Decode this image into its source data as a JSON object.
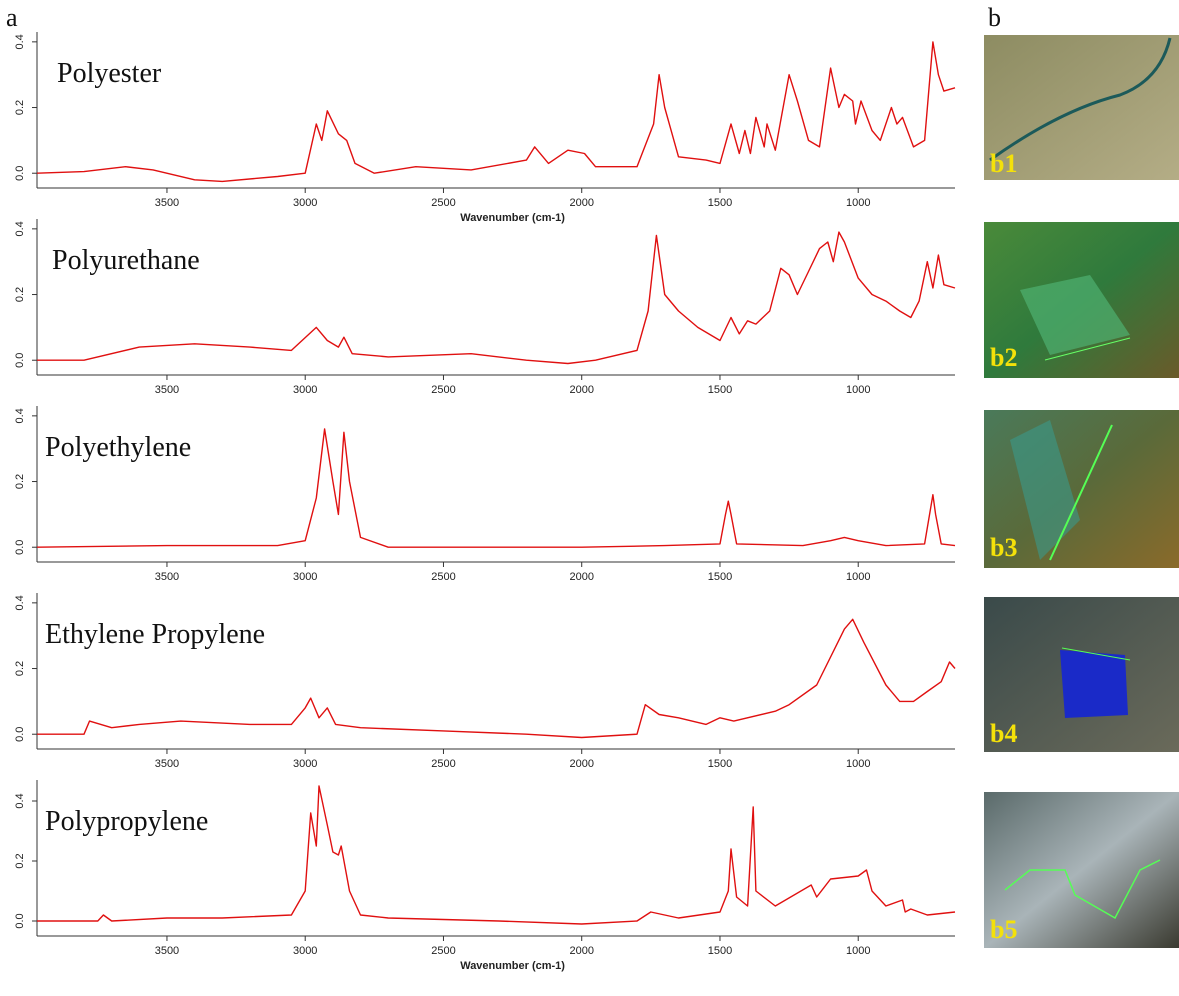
{
  "panel_labels": [
    "a",
    "b"
  ],
  "photos": [
    {
      "label": "b1"
    },
    {
      "label": "b2"
    },
    {
      "label": "b3"
    },
    {
      "label": "b4"
    },
    {
      "label": "b5"
    }
  ],
  "chart_data": [
    {
      "type": "line",
      "title": "Polyester",
      "xlabel": "Wavenumber (cm-1)",
      "color": "#e01010",
      "xlim": [
        3970,
        650
      ],
      "ylim": [
        -0.045,
        0.43
      ],
      "xticks": [
        3500,
        3000,
        2500,
        2000,
        1500,
        1000
      ],
      "yticks": [
        {
          "value": 0,
          "label": "0.0"
        },
        {
          "value": 0.2,
          "label": "0.2"
        },
        {
          "value": 0.4,
          "label": "0.4"
        }
      ],
      "x": [
        3970,
        3800,
        3650,
        3550,
        3400,
        3300,
        3100,
        3000,
        2960,
        2940,
        2920,
        2880,
        2850,
        2820,
        2750,
        2600,
        2400,
        2200,
        2170,
        2120,
        2050,
        1990,
        1950,
        1800,
        1740,
        1720,
        1700,
        1650,
        1550,
        1500,
        1460,
        1430,
        1410,
        1390,
        1370,
        1340,
        1330,
        1300,
        1250,
        1220,
        1180,
        1140,
        1100,
        1070,
        1050,
        1020,
        1010,
        990,
        950,
        920,
        880,
        860,
        840,
        800,
        760,
        730,
        710,
        690,
        650
      ],
      "values": [
        0.0,
        0.005,
        0.02,
        0.01,
        -0.02,
        -0.025,
        -0.01,
        0.0,
        0.15,
        0.1,
        0.19,
        0.12,
        0.1,
        0.03,
        0.0,
        0.02,
        0.01,
        0.04,
        0.08,
        0.03,
        0.07,
        0.06,
        0.02,
        0.02,
        0.15,
        0.3,
        0.2,
        0.05,
        0.04,
        0.03,
        0.15,
        0.06,
        0.13,
        0.06,
        0.17,
        0.08,
        0.15,
        0.07,
        0.3,
        0.22,
        0.1,
        0.08,
        0.32,
        0.2,
        0.24,
        0.22,
        0.15,
        0.22,
        0.13,
        0.1,
        0.2,
        0.15,
        0.17,
        0.08,
        0.1,
        0.4,
        0.3,
        0.25,
        0.26
      ]
    },
    {
      "type": "line",
      "title": "Polyurethane",
      "color": "#e01010",
      "xlim": [
        3970,
        650
      ],
      "ylim": [
        -0.045,
        0.43
      ],
      "xticks": [
        3500,
        3000,
        2500,
        2000,
        1500,
        1000
      ],
      "yticks": [
        {
          "value": 0,
          "label": "0.0"
        },
        {
          "value": 0.2,
          "label": "0.2"
        },
        {
          "value": 0.4,
          "label": "0.4"
        }
      ],
      "x": [
        3970,
        3800,
        3600,
        3400,
        3200,
        3050,
        2960,
        2920,
        2880,
        2860,
        2830,
        2700,
        2400,
        2200,
        2050,
        1950,
        1800,
        1760,
        1730,
        1700,
        1650,
        1580,
        1500,
        1460,
        1430,
        1400,
        1370,
        1320,
        1280,
        1250,
        1220,
        1180,
        1140,
        1110,
        1090,
        1070,
        1050,
        1000,
        950,
        900,
        850,
        810,
        780,
        750,
        730,
        710,
        690,
        650
      ],
      "values": [
        0.0,
        0.0,
        0.04,
        0.05,
        0.04,
        0.03,
        0.1,
        0.06,
        0.04,
        0.07,
        0.02,
        0.01,
        0.02,
        0.0,
        -0.01,
        0.0,
        0.03,
        0.15,
        0.38,
        0.2,
        0.15,
        0.1,
        0.06,
        0.13,
        0.08,
        0.12,
        0.11,
        0.15,
        0.28,
        0.26,
        0.2,
        0.27,
        0.34,
        0.36,
        0.3,
        0.39,
        0.36,
        0.25,
        0.2,
        0.18,
        0.15,
        0.13,
        0.18,
        0.3,
        0.22,
        0.32,
        0.23,
        0.22
      ]
    },
    {
      "type": "line",
      "title": "Polyethylene",
      "color": "#e01010",
      "xlim": [
        3970,
        650
      ],
      "ylim": [
        -0.045,
        0.43
      ],
      "xticks": [
        3500,
        3000,
        2500,
        2000,
        1500,
        1000
      ],
      "yticks": [
        {
          "value": 0,
          "label": "0.0"
        },
        {
          "value": 0.2,
          "label": "0.2"
        },
        {
          "value": 0.4,
          "label": "0.4"
        }
      ],
      "x": [
        3970,
        3500,
        3100,
        3000,
        2960,
        2930,
        2900,
        2880,
        2860,
        2840,
        2800,
        2700,
        2500,
        2000,
        1700,
        1500,
        1480,
        1470,
        1460,
        1440,
        1200,
        1100,
        1050,
        1000,
        900,
        760,
        730,
        720,
        700,
        650
      ],
      "values": [
        0.0,
        0.005,
        0.005,
        0.02,
        0.15,
        0.36,
        0.2,
        0.1,
        0.35,
        0.2,
        0.03,
        0.0,
        0.0,
        0.0,
        0.005,
        0.01,
        0.1,
        0.14,
        0.1,
        0.01,
        0.005,
        0.02,
        0.03,
        0.02,
        0.005,
        0.01,
        0.16,
        0.1,
        0.01,
        0.005
      ]
    },
    {
      "type": "line",
      "title": "Ethylene Propylene",
      "color": "#e01010",
      "xlim": [
        3970,
        650
      ],
      "ylim": [
        -0.045,
        0.43
      ],
      "xticks": [
        3500,
        3000,
        2500,
        2000,
        1500,
        1000
      ],
      "yticks": [
        {
          "value": 0,
          "label": "0.0"
        },
        {
          "value": 0.2,
          "label": "0.2"
        },
        {
          "value": 0.4,
          "label": "0.4"
        }
      ],
      "x": [
        3970,
        3800,
        3780,
        3700,
        3600,
        3450,
        3200,
        3050,
        3000,
        2980,
        2950,
        2920,
        2890,
        2800,
        2500,
        2200,
        2000,
        1800,
        1770,
        1720,
        1650,
        1550,
        1500,
        1450,
        1300,
        1250,
        1150,
        1050,
        1020,
        980,
        900,
        850,
        800,
        750,
        700,
        670,
        650
      ],
      "values": [
        0.0,
        0.0,
        0.04,
        0.02,
        0.03,
        0.04,
        0.03,
        0.03,
        0.08,
        0.11,
        0.05,
        0.08,
        0.03,
        0.02,
        0.01,
        0.0,
        -0.01,
        0.0,
        0.09,
        0.06,
        0.05,
        0.03,
        0.05,
        0.04,
        0.07,
        0.09,
        0.15,
        0.32,
        0.35,
        0.28,
        0.15,
        0.1,
        0.1,
        0.13,
        0.16,
        0.22,
        0.2
      ]
    },
    {
      "type": "line",
      "title": "Polypropylene",
      "xlabel": "Wavenumber (cm-1)",
      "color": "#e01010",
      "xlim": [
        3970,
        650
      ],
      "ylim": [
        -0.05,
        0.47
      ],
      "xticks": [
        3500,
        3000,
        2500,
        2000,
        1500,
        1000
      ],
      "yticks": [
        {
          "value": 0,
          "label": "0.0"
        },
        {
          "value": 0.2,
          "label": "0.2"
        },
        {
          "value": 0.4,
          "label": "0.4"
        }
      ],
      "x": [
        3970,
        3750,
        3730,
        3700,
        3500,
        3300,
        3050,
        3000,
        2980,
        2960,
        2950,
        2920,
        2900,
        2880,
        2870,
        2840,
        2800,
        2700,
        2300,
        2000,
        1800,
        1750,
        1650,
        1500,
        1470,
        1460,
        1440,
        1400,
        1380,
        1370,
        1300,
        1170,
        1150,
        1100,
        1000,
        970,
        950,
        900,
        840,
        830,
        810,
        750,
        650
      ],
      "values": [
        0.0,
        0.0,
        0.02,
        0.0,
        0.01,
        0.01,
        0.02,
        0.1,
        0.36,
        0.25,
        0.45,
        0.32,
        0.23,
        0.22,
        0.25,
        0.1,
        0.02,
        0.01,
        0.0,
        -0.01,
        0.0,
        0.03,
        0.01,
        0.03,
        0.1,
        0.24,
        0.08,
        0.05,
        0.38,
        0.1,
        0.05,
        0.12,
        0.08,
        0.14,
        0.15,
        0.17,
        0.1,
        0.05,
        0.07,
        0.03,
        0.04,
        0.02,
        0.03
      ]
    }
  ]
}
